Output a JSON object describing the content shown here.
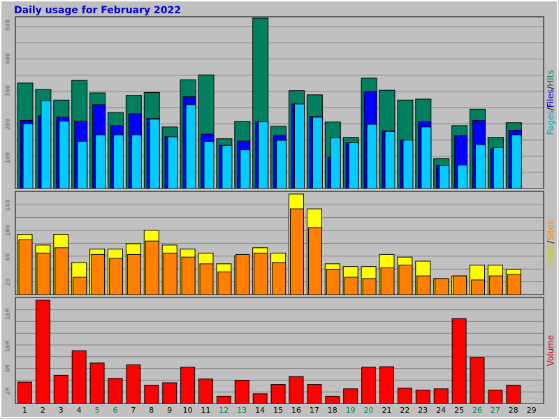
{
  "chart_data": [
    {
      "type": "bar",
      "title": "Daily usage for February 2022",
      "categories": [
        "1",
        "2",
        "3",
        "4",
        "5",
        "6",
        "7",
        "8",
        "9",
        "10",
        "11",
        "12",
        "13",
        "14",
        "15",
        "16",
        "17",
        "18",
        "19",
        "20",
        "21",
        "22",
        "23",
        "24",
        "25",
        "26",
        "27",
        "28",
        "29"
      ],
      "weekend_categories": [
        "5",
        "6",
        "12",
        "13",
        "19",
        "20",
        "26",
        "27"
      ],
      "series": [
        {
          "name": "Hits",
          "color": "#008060",
          "values": [
            322,
            302,
            270,
            330,
            292,
            232,
            284,
            293,
            188,
            332,
            347,
            152,
            205,
            520,
            190,
            299,
            286,
            203,
            156,
            337,
            300,
            270,
            273,
            92,
            192,
            242,
            156,
            201,
            0
          ]
        },
        {
          "name": "Files",
          "color": "#0000ff",
          "values": [
            208,
            222,
            218,
            206,
            256,
            192,
            228,
            214,
            158,
            280,
            166,
            132,
            145,
            204,
            162,
            258,
            220,
            96,
            140,
            296,
            176,
            148,
            204,
            70,
            162,
            208,
            121,
            178,
            0
          ]
        },
        {
          "name": "Pages",
          "color": "#00ccff",
          "values": [
            198,
            268,
            206,
            144,
            164,
            164,
            164,
            212,
            158,
            256,
            144,
            131,
            118,
            204,
            147,
            258,
            218,
            155,
            140,
            196,
            174,
            148,
            188,
            70,
            72,
            134,
            125,
            164,
            0
          ]
        }
      ],
      "ytick_labels": [
        "100",
        "200",
        "300",
        "400",
        "500"
      ],
      "ylim": [
        0,
        520
      ],
      "ylabel_parts": [
        {
          "text": "Pages",
          "color": "#00aaaa"
        },
        {
          "text": "/",
          "color": "#000000"
        },
        {
          "text": "Files",
          "color": "#0000cc"
        },
        {
          "text": "/",
          "color": "#000000"
        },
        {
          "text": "Hits",
          "color": "#008060"
        }
      ]
    },
    {
      "type": "bar",
      "categories": [
        "1",
        "2",
        "3",
        "4",
        "5",
        "6",
        "7",
        "8",
        "9",
        "10",
        "11",
        "12",
        "13",
        "14",
        "15",
        "16",
        "17",
        "18",
        "19",
        "20",
        "21",
        "22",
        "23",
        "24",
        "25",
        "26",
        "27",
        "28",
        "29"
      ],
      "series": [
        {
          "name": "Sites",
          "color": "#ffff00",
          "values": [
            90,
            74,
            90,
            48,
            68,
            68,
            76,
            96,
            74,
            68,
            62,
            46,
            58,
            70,
            62,
            150,
            128,
            46,
            42,
            42,
            60,
            56,
            50,
            24,
            28,
            44,
            44,
            38,
            0
          ]
        },
        {
          "name": "Visits",
          "color": "#ff8000",
          "values": [
            82,
            62,
            70,
            26,
            60,
            54,
            60,
            80,
            62,
            56,
            46,
            34,
            60,
            62,
            48,
            128,
            100,
            38,
            26,
            24,
            40,
            44,
            28,
            24,
            28,
            22,
            28,
            30,
            0
          ]
        }
      ],
      "ytick_labels": [
        "20",
        "60",
        "100",
        "140"
      ],
      "ylim": [
        0,
        152
      ],
      "ylabel_parts": [
        {
          "text": "Visits",
          "color": "#cccc00"
        },
        {
          "text": "/",
          "color": "#000000"
        },
        {
          "text": "Sites",
          "color": "#ff8000"
        }
      ]
    },
    {
      "type": "bar",
      "categories": [
        "1",
        "2",
        "3",
        "4",
        "5",
        "6",
        "7",
        "8",
        "9",
        "10",
        "11",
        "12",
        "13",
        "14",
        "15",
        "16",
        "17",
        "18",
        "19",
        "20",
        "21",
        "22",
        "23",
        "24",
        "25",
        "26",
        "27",
        "28",
        "29"
      ],
      "series": [
        {
          "name": "Volume",
          "color": "#ff0000",
          "values": [
            3.5,
            16.8,
            4.6,
            8.6,
            6.6,
            4.1,
            6.3,
            3.0,
            3.4,
            5.9,
            4.0,
            1.2,
            3.8,
            1.6,
            3.1,
            4.4,
            3.1,
            1.2,
            2.4,
            5.9,
            6.0,
            2.5,
            2.2,
            2.4,
            13.8,
            7.5,
            2.2,
            3.0,
            0
          ]
        }
      ],
      "ytick_labels": [
        "2M",
        "6M",
        "10M",
        "16M"
      ],
      "ytick_values": [
        2,
        6,
        10,
        16
      ],
      "ylim": [
        0,
        17
      ],
      "ylabel_parts": [
        {
          "text": "Volume",
          "color": "#cc0000"
        }
      ]
    }
  ]
}
